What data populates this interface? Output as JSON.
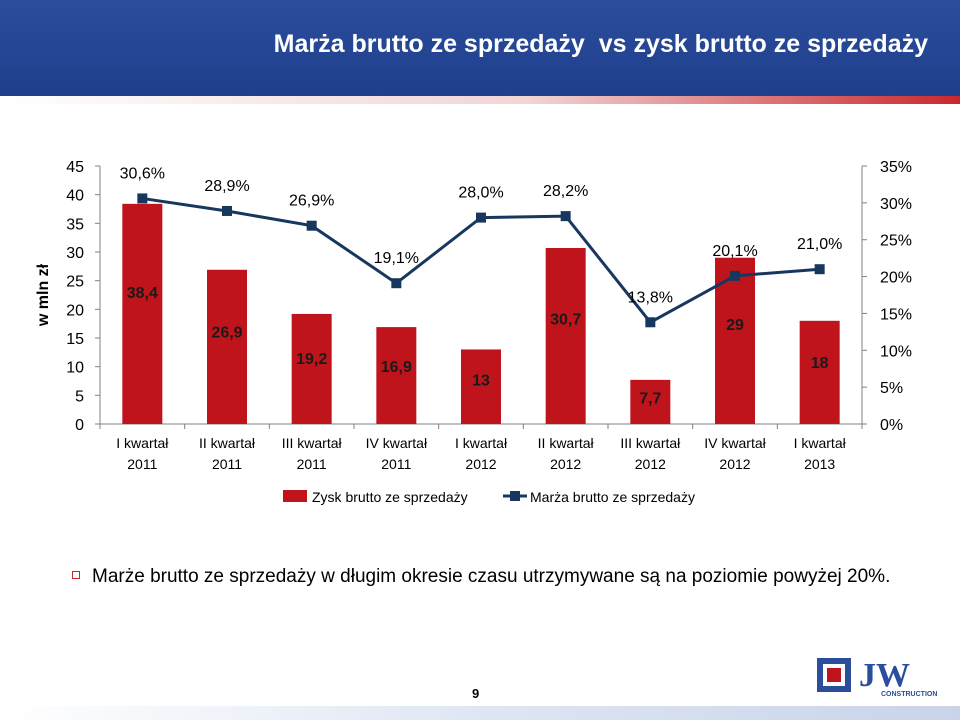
{
  "slide": {
    "title": "Marża brutto ze sprzedaży  vs zysk brutto ze sprzedaży",
    "bullet": "Marże brutto ze sprzedaży w długim okresie czasu utrzymywane są na poziomie powyżej 20%.",
    "page_number": "9",
    "logo_text": "JW",
    "logo_subtext": "CONSTRUCTION"
  },
  "chart_data": {
    "type": "bar",
    "ylabel": "w mln zł",
    "ylim": [
      0,
      45
    ],
    "y_ticks": [
      "0",
      "5",
      "10",
      "15",
      "20",
      "25",
      "30",
      "35",
      "40",
      "45"
    ],
    "y2lim": [
      0,
      35
    ],
    "y2_ticks": [
      "0%",
      "5%",
      "10%",
      "15%",
      "20%",
      "25%",
      "30%",
      "35%"
    ],
    "categories": [
      [
        "I kwartał",
        "2011"
      ],
      [
        "II kwartał",
        "2011"
      ],
      [
        "III kwartał",
        "2011"
      ],
      [
        "IV kwartał",
        "2011"
      ],
      [
        "I kwartał",
        "2012"
      ],
      [
        "II kwartał",
        "2012"
      ],
      [
        "III kwartał",
        "2012"
      ],
      [
        "IV kwartał",
        "2012"
      ],
      [
        "I kwartał",
        "2013"
      ]
    ],
    "series": [
      {
        "name": "Zysk brutto ze sprzedaży",
        "type": "bar",
        "axis": "left",
        "color": "#c0141c",
        "values": [
          38.4,
          26.9,
          19.2,
          16.9,
          13,
          30.7,
          7.7,
          29,
          18
        ],
        "labels": [
          "38,4",
          "26,9",
          "19,2",
          "16,9",
          "13",
          "30,7",
          "7,7",
          "29",
          "18"
        ]
      },
      {
        "name": "Marża brutto ze sprzedaży",
        "type": "line",
        "axis": "right",
        "color": "#17375e",
        "values": [
          30.6,
          28.9,
          26.9,
          19.1,
          28.0,
          28.2,
          13.8,
          20.1,
          21.0
        ],
        "labels": [
          "30,6%",
          "28,9%",
          "26,9%",
          "19,1%",
          "28,0%",
          "28,2%",
          "13,8%",
          "20,1%",
          "21,0%"
        ]
      }
    ],
    "legend": "bottom",
    "grid": false
  }
}
